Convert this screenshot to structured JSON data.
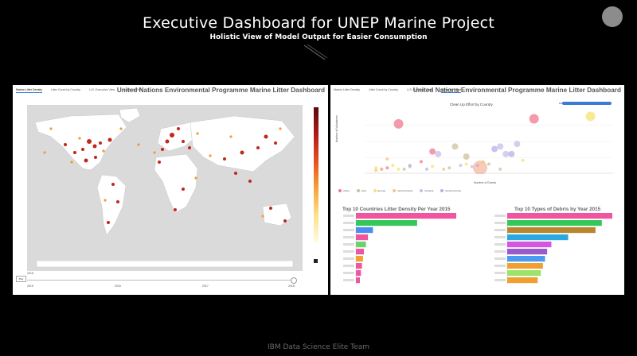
{
  "slide": {
    "title": "Executive Dashboard for UNEP Marine Project",
    "subtitle": "Holistic View of Model Output for Easier Consumption",
    "footer": "IBM Data Science Elite Team"
  },
  "left_panel": {
    "tabs": [
      "Marine Litter Density",
      "Litter Count by Country",
      "U.S. Executive View",
      "Clean Up Effort"
    ],
    "active_tab": 0,
    "title": "United Nations Environmental Programme Marine Litter Dashboard",
    "colorbar_ticks": [
      "",
      "",
      "",
      "",
      "",
      "",
      "",
      "",
      "",
      "",
      "",
      ""
    ],
    "slider": {
      "label": "2018",
      "play_label": "Play",
      "ticks": [
        "2015",
        "2016",
        "2017",
        "2018"
      ]
    }
  },
  "right_panel": {
    "tabs": [
      "Marine Litter Density",
      "Litter Count by Country",
      "U.S. Executive View",
      "Clean Up Effort"
    ],
    "active_tab": 3,
    "title": "United Nations Environmental Programme Marine Litter Dashboard",
    "bubble_title": "Clean Up Effort by Country",
    "ylabel": "Number of Volunteers",
    "xlabel": "Number of Events",
    "control_label": "100",
    "legend": [
      {
        "name": "Africa",
        "color": "#ef7a8e"
      },
      {
        "name": "Asia",
        "color": "#c9c2a0"
      },
      {
        "name": "Europe",
        "color": "#f7e274"
      },
      {
        "name": "North America",
        "color": "#f4c48a"
      },
      {
        "name": "Oceania",
        "color": "#c7bde8"
      },
      {
        "name": "South America",
        "color": "#b7b0e8"
      }
    ],
    "bar_chart_1": {
      "title": "Top 10 Countries Litter Density Per Year 2015"
    },
    "bar_chart_2": {
      "title": "Top 10 Types of Debris by Year 2015"
    }
  },
  "chart_data": [
    {
      "type": "scatter",
      "title": "Clean Up Effort by Country",
      "xlabel": "Number of Events",
      "ylabel": "Number of Volunteers",
      "series": [
        {
          "name": "Africa",
          "points": [
            [
              6,
              38
            ],
            [
              10,
              8
            ],
            [
              4,
              3
            ],
            [
              12,
              16
            ],
            [
              30,
              42
            ],
            [
              3,
              2
            ]
          ]
        },
        {
          "name": "Asia",
          "points": [
            [
              8,
              4
            ],
            [
              22,
              6
            ],
            [
              7,
              2
            ],
            [
              15,
              3
            ],
            [
              16,
              20
            ],
            [
              18,
              12
            ],
            [
              24,
              2
            ]
          ]
        },
        {
          "name": "Europe",
          "points": [
            [
              2,
              3
            ],
            [
              12,
              4
            ],
            [
              18,
              6
            ],
            [
              6,
              2
            ],
            [
              40,
              44
            ],
            [
              5,
              5
            ],
            [
              28,
              9
            ],
            [
              21,
              8
            ]
          ]
        },
        {
          "name": "North America",
          "points": [
            [
              4,
              10
            ],
            [
              14,
              2
            ],
            [
              2,
              1
            ],
            [
              3,
              2
            ]
          ]
        },
        {
          "name": "Oceania",
          "points": [
            [
              13,
              14
            ],
            [
              25,
              14
            ],
            [
              24,
              20
            ],
            [
              27,
              22
            ],
            [
              17,
              5
            ],
            [
              19,
              4
            ]
          ]
        },
        {
          "name": "South America",
          "points": [
            [
              8,
              5
            ],
            [
              20,
              5
            ],
            [
              23,
              18
            ],
            [
              26,
              14
            ],
            [
              11,
              2
            ]
          ]
        }
      ]
    },
    {
      "type": "bar",
      "title": "Top 10 Countries Litter Density Per Year 2015",
      "categories": [
        "",
        "",
        "",
        "",
        "",
        "",
        "",
        "",
        "",
        ""
      ],
      "values": [
        100,
        61,
        17,
        12,
        10,
        8,
        7,
        6,
        5,
        4
      ],
      "colors": [
        "#ef55a0",
        "#34c759",
        "#4a8ff0",
        "#ef55a0",
        "#6ad26a",
        "#ef55a0",
        "#f0a030",
        "#ef55a0",
        "#ef55a0",
        "#ef55a0"
      ]
    },
    {
      "type": "bar",
      "title": "Top 10 Types of Debris by Year 2015",
      "categories": [
        "",
        "",
        "",
        "",
        "",
        "",
        "",
        "",
        "",
        ""
      ],
      "values": [
        100,
        90,
        84,
        58,
        42,
        38,
        36,
        34,
        32,
        29
      ],
      "colors": [
        "#ef55a0",
        "#34c759",
        "#b8862f",
        "#2aa9e0",
        "#d455e0",
        "#9b59d0",
        "#4a9af0",
        "#f0a030",
        "#9be36a",
        "#f0a030"
      ]
    }
  ]
}
